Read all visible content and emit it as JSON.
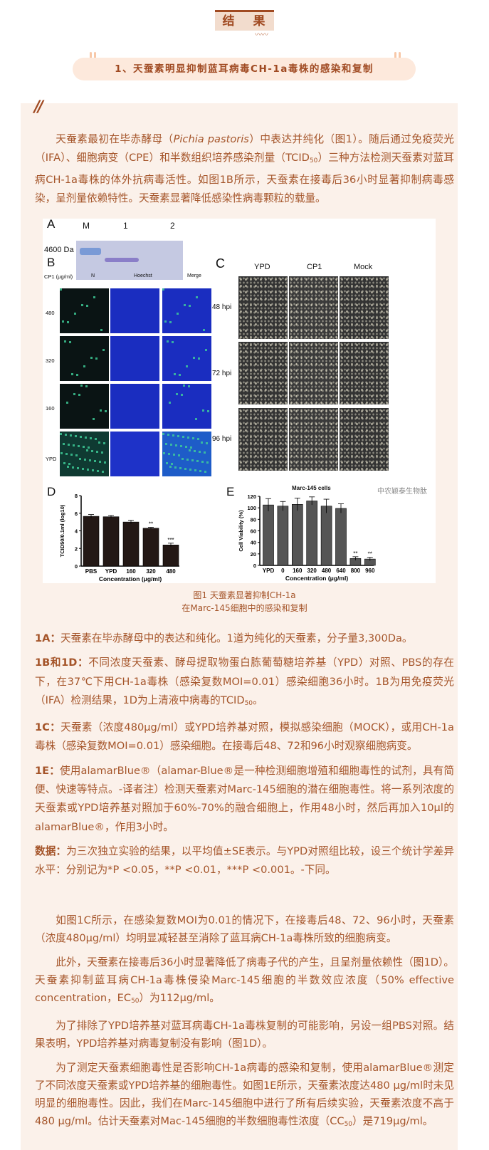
{
  "section_title": "结 果",
  "subtitle": "1、天蚕素明显抑制蓝耳病毒CH-1a毒株的感染和复制",
  "quote_mark": "//",
  "intro": {
    "p1_a": "天蚕素最初在毕赤酵母（",
    "p1_italic": "Pichia pastoris",
    "p1_b": "）中表达并纯化（图1）。随后通过免疫荧光（IFA）、细胞病变（CPE）和半数组织培养感染剂量（TCID",
    "p1_sub": "50",
    "p1_c": "）三种方法检测天蚕素对蓝耳病CH-1a毒株的体外抗病毒活性。如图1B所示，天蚕素在接毒后36小时显著抑制病毒感染，呈剂量依赖特性。天蚕素显著降低感染性病毒颗粒的载量。"
  },
  "figure": {
    "panel_a": {
      "label": "A",
      "lanes": [
        "M",
        "1",
        "2"
      ],
      "marker": "4600 Da"
    },
    "panel_b": {
      "label": "B",
      "row_header": "CP1 (μg/ml)",
      "columns": [
        "N",
        "Hoechst",
        "Merge"
      ],
      "rows": [
        "480",
        "320",
        "160",
        "YPD"
      ]
    },
    "panel_c": {
      "label": "C",
      "columns": [
        "YPD",
        "CP1",
        "Mock"
      ],
      "rows": [
        "48 hpi",
        "72 hpi",
        "96 hpi"
      ],
      "footer": "Marc-145 cells"
    },
    "watermark": "中农颖泰生物肽",
    "caption_line1": "图1 天蚕素显著抑制CH-1a",
    "caption_line2": "在Marc-145细胞中的感染和复制"
  },
  "chart_data": [
    {
      "panel": "D",
      "type": "bar",
      "categories": [
        "PBS",
        "YPD",
        "160",
        "320",
        "480"
      ],
      "values": [
        5.65,
        5.6,
        5.0,
        4.3,
        2.4
      ],
      "errors": [
        0.2,
        0.15,
        0.2,
        0.1,
        0.2
      ],
      "annotations": [
        "",
        "",
        "",
        "**",
        "***"
      ],
      "xlabel": "Concentration (μg/ml)",
      "ylabel": "TCID50/0.1ml (log10)",
      "ylim": [
        0,
        8
      ],
      "yticks": [
        0,
        2,
        4,
        6,
        8
      ],
      "color": "#231815"
    },
    {
      "panel": "E",
      "type": "bar",
      "categories": [
        "YPD",
        "0",
        "160",
        "320",
        "480",
        "640",
        "800",
        "960"
      ],
      "values": [
        105,
        103,
        106,
        112,
        103,
        99,
        12,
        11
      ],
      "errors": [
        11,
        8,
        11,
        7,
        12,
        8,
        3,
        3
      ],
      "annotations": [
        "",
        "",
        "",
        "",
        "",
        "",
        "**",
        "**"
      ],
      "xlabel": "Concentration (μg/ml)",
      "ylabel": "Cell Viability (%)",
      "ylim": [
        0,
        120
      ],
      "yticks": [
        0,
        20,
        40,
        60,
        80,
        100,
        120
      ],
      "color": "#555555"
    }
  ],
  "notes": [
    {
      "label": "1A：",
      "text": "天蚕素在毕赤酵母中的表达和纯化。1道为纯化的天蚕素，分子量3,300Da。"
    },
    {
      "label": "1B和1D：",
      "text": "不同浓度天蚕素、酵母提取物蛋白胨葡萄糖培养基（YPD）对照、PBS的存在下，在37℃下用CH-1a毒株（感染复数MOI=0.01）感染细胞36小时。1B为用免疫荧光（IFA）检测结果，1D为上清液中病毒的TCID",
      "sub": "50",
      "tail": "。"
    },
    {
      "label": "1C：",
      "text": "天蚕素（浓度480μg/ml）或YPD培养基对照，模拟感染细胞（MOCK），或用CH-1a毒株（感染复数MOI=0.01）感染细胞。在接毒后48、72和96小时观察细胞病变。"
    },
    {
      "label": "1E：",
      "text": "使用alamarBlue®（alamar-Blue®是一种检测细胞增殖和细胞毒性的试剂，具有简便、快速等特点。-译者注）检测天蚕素对Marc-145细胞的潜在细胞毒性。将一系列浓度的天蚕素或YPD培养基对照加于60%-70%的融合细胞上，作用48小时，然后再加入10μl的 alamarBlue®，作用3小时。"
    },
    {
      "label": "数据：",
      "text": "为三次独立实验的结果，以平均值±SE表示。与YPD对照组比较，设三个统计学差异水平：分别记为*P <0.05，**P <0.01，***P <0.001。-下同。"
    }
  ],
  "body": {
    "p1": "如图1C所示，在感染复数MOI为0.01的情况下，在接毒后48、72、96小时，天蚕素（浓度480μg/ml）均明显减轻甚至消除了蓝耳病CH-1a毒株所致的细胞病变。",
    "p2_a": "此外，天蚕素在接毒后36小时显著降低了病毒子代的产生，且呈剂量依赖性（图1D）。天蚕素抑制蓝耳病CH-1a毒株侵染Marc-145细胞的半数效应浓度（50% effective concentration，EC",
    "p2_sub": "50",
    "p2_b": "）为112μg/ml。",
    "p3": "为了排除了YPD培养基对蓝耳病毒CH-1a毒株复制的可能影响，另设一组PBS对照。结果表明，YPD培养基对病毒复制没有影响（图1D）。",
    "p4_a": "为了测定天蚕素细胞毒性是否影响CH-1a病毒的感染和复制，使用alamarBlue®测定了不同浓度天蚕素或YPD培养基的细胞毒性。如图1E所示，天蚕素浓度达480 μg/ml时未见明显的细胞毒性。因此，我们在Marc-145细胞中进行了所有后续实验，天蚕素浓度不高于480 μg/ml。估计天蚕素对Mac-145细胞的半数细胞毒性浓度（CC",
    "p4_sub": "50",
    "p4_b": "）是719μg/ml。"
  },
  "colors": {
    "text": "#a5552a",
    "accent": "#a04a22",
    "card": "#fbf1ea",
    "pill": "#fde9dc"
  }
}
